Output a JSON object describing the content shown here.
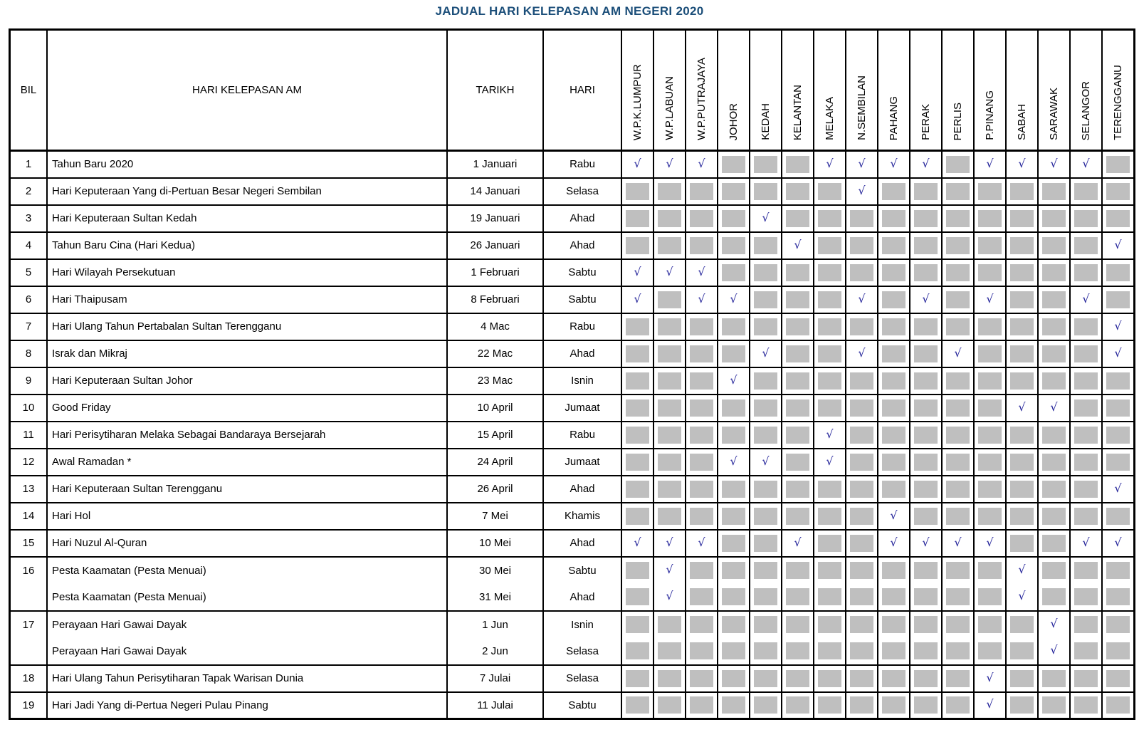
{
  "title": "JADUAL HARI KELEPASAN AM NEGERI 2020",
  "title_color": "#1B4E79",
  "check_color": "#26269B",
  "box_color": "#BFBFBF",
  "glyphs": {
    "check": "√"
  },
  "headers": [
    "BIL",
    "HARI KELEPASAN AM",
    "TARIKH",
    "HARI"
  ],
  "states": [
    "W.P.K.LUMPUR",
    "W.P.LABUAN",
    "W.P.PUTRAJAYA",
    "JOHOR",
    "KEDAH",
    "KELANTAN",
    "MELAKA",
    "N.SEMBILAN",
    "PAHANG",
    "PERAK",
    "PERLIS",
    "P.PINANG",
    "SABAH",
    "SARAWAK",
    "SELANGOR",
    "TERENGGANU"
  ],
  "rows": [
    {
      "bil": "1",
      "entries": [
        {
          "name": "Tahun Baru 2020",
          "date": "1 Januari",
          "day": "Rabu",
          "marks": [
            1,
            1,
            1,
            0,
            0,
            0,
            1,
            1,
            1,
            1,
            0,
            1,
            1,
            1,
            1,
            0
          ]
        }
      ]
    },
    {
      "bil": "2",
      "entries": [
        {
          "name": "Hari Keputeraan Yang di-Pertuan Besar Negeri Sembilan",
          "date": "14 Januari",
          "day": "Selasa",
          "marks": [
            0,
            0,
            0,
            0,
            0,
            0,
            0,
            1,
            0,
            0,
            0,
            0,
            0,
            0,
            0,
            0
          ]
        }
      ]
    },
    {
      "bil": "3",
      "entries": [
        {
          "name": "Hari Keputeraan Sultan Kedah",
          "date": "19 Januari",
          "day": "Ahad",
          "marks": [
            0,
            0,
            0,
            0,
            1,
            0,
            0,
            0,
            0,
            0,
            0,
            0,
            0,
            0,
            0,
            0
          ]
        }
      ]
    },
    {
      "bil": "4",
      "entries": [
        {
          "name": "Tahun Baru Cina (Hari Kedua)",
          "date": "26 Januari",
          "day": "Ahad",
          "marks": [
            0,
            0,
            0,
            0,
            0,
            1,
            0,
            0,
            0,
            0,
            0,
            0,
            0,
            0,
            0,
            1
          ]
        }
      ]
    },
    {
      "bil": "5",
      "entries": [
        {
          "name": "Hari Wilayah Persekutuan",
          "date": "1 Februari",
          "day": "Sabtu",
          "marks": [
            1,
            1,
            1,
            0,
            0,
            0,
            0,
            0,
            0,
            0,
            0,
            0,
            0,
            0,
            0,
            0
          ]
        }
      ]
    },
    {
      "bil": "6",
      "entries": [
        {
          "name": "Hari Thaipusam",
          "date": "8 Februari",
          "day": "Sabtu",
          "marks": [
            1,
            0,
            1,
            1,
            0,
            0,
            0,
            1,
            0,
            1,
            0,
            1,
            0,
            0,
            1,
            0
          ]
        }
      ]
    },
    {
      "bil": "7",
      "entries": [
        {
          "name": "Hari Ulang Tahun Pertabalan Sultan Terengganu",
          "date": "4 Mac",
          "day": "Rabu",
          "marks": [
            0,
            0,
            0,
            0,
            0,
            0,
            0,
            0,
            0,
            0,
            0,
            0,
            0,
            0,
            0,
            1
          ]
        }
      ]
    },
    {
      "bil": "8",
      "entries": [
        {
          "name": "Israk dan Mikraj",
          "date": "22 Mac",
          "day": "Ahad",
          "marks": [
            0,
            0,
            0,
            0,
            1,
            0,
            0,
            1,
            0,
            0,
            1,
            0,
            0,
            0,
            0,
            1
          ]
        }
      ]
    },
    {
      "bil": "9",
      "entries": [
        {
          "name": "Hari Keputeraan Sultan Johor",
          "date": "23 Mac",
          "day": "Isnin",
          "marks": [
            0,
            0,
            0,
            1,
            0,
            0,
            0,
            0,
            0,
            0,
            0,
            0,
            0,
            0,
            0,
            0
          ]
        }
      ]
    },
    {
      "bil": "10",
      "entries": [
        {
          "name": "Good Friday",
          "date": "10 April",
          "day": "Jumaat",
          "marks": [
            0,
            0,
            0,
            0,
            0,
            0,
            0,
            0,
            0,
            0,
            0,
            0,
            1,
            1,
            0,
            0
          ]
        }
      ]
    },
    {
      "bil": "11",
      "entries": [
        {
          "name": "Hari Perisytiharan Melaka Sebagai Bandaraya Bersejarah",
          "date": "15 April",
          "day": "Rabu",
          "marks": [
            0,
            0,
            0,
            0,
            0,
            0,
            1,
            0,
            0,
            0,
            0,
            0,
            0,
            0,
            0,
            0
          ]
        }
      ]
    },
    {
      "bil": "12",
      "entries": [
        {
          "name": "Awal Ramadan *",
          "date": "24 April",
          "day": "Jumaat",
          "marks": [
            0,
            0,
            0,
            1,
            1,
            0,
            1,
            0,
            0,
            0,
            0,
            0,
            0,
            0,
            0,
            0
          ]
        }
      ]
    },
    {
      "bil": "13",
      "entries": [
        {
          "name": "Hari Keputeraan Sultan Terengganu",
          "date": "26 April",
          "day": "Ahad",
          "marks": [
            0,
            0,
            0,
            0,
            0,
            0,
            0,
            0,
            0,
            0,
            0,
            0,
            0,
            0,
            0,
            1
          ]
        }
      ]
    },
    {
      "bil": "14",
      "entries": [
        {
          "name": "Hari Hol",
          "date": "7 Mei",
          "day": "Khamis",
          "marks": [
            0,
            0,
            0,
            0,
            0,
            0,
            0,
            0,
            1,
            0,
            0,
            0,
            0,
            0,
            0,
            0
          ]
        }
      ]
    },
    {
      "bil": "15",
      "entries": [
        {
          "name": "Hari Nuzul Al-Quran",
          "date": "10 Mei",
          "day": "Ahad",
          "marks": [
            1,
            1,
            1,
            0,
            0,
            1,
            0,
            0,
            1,
            1,
            1,
            1,
            0,
            0,
            1,
            1
          ]
        }
      ]
    },
    {
      "bil": "16",
      "entries": [
        {
          "name": "Pesta Kaamatan (Pesta Menuai)",
          "date": "30 Mei",
          "day": "Sabtu",
          "marks": [
            0,
            1,
            0,
            0,
            0,
            0,
            0,
            0,
            0,
            0,
            0,
            0,
            1,
            0,
            0,
            0
          ]
        },
        {
          "name": "Pesta Kaamatan (Pesta Menuai)",
          "date": "31 Mei",
          "day": "Ahad",
          "marks": [
            0,
            1,
            0,
            0,
            0,
            0,
            0,
            0,
            0,
            0,
            0,
            0,
            1,
            0,
            0,
            0
          ]
        }
      ]
    },
    {
      "bil": "17",
      "entries": [
        {
          "name": "Perayaan Hari Gawai Dayak",
          "date": "1 Jun",
          "day": "Isnin",
          "marks": [
            0,
            0,
            0,
            0,
            0,
            0,
            0,
            0,
            0,
            0,
            0,
            0,
            0,
            1,
            0,
            0
          ]
        },
        {
          "name": "Perayaan Hari Gawai Dayak",
          "date": "2 Jun",
          "day": "Selasa",
          "marks": [
            0,
            0,
            0,
            0,
            0,
            0,
            0,
            0,
            0,
            0,
            0,
            0,
            0,
            1,
            0,
            0
          ]
        }
      ]
    },
    {
      "bil": "18",
      "entries": [
        {
          "name": "Hari Ulang Tahun Perisytiharan Tapak Warisan Dunia",
          "date": "7 Julai",
          "day": "Selasa",
          "marks": [
            0,
            0,
            0,
            0,
            0,
            0,
            0,
            0,
            0,
            0,
            0,
            1,
            0,
            0,
            0,
            0
          ]
        }
      ]
    },
    {
      "bil": "19",
      "entries": [
        {
          "name": "Hari Jadi Yang di-Pertua Negeri Pulau Pinang",
          "date": "11 Julai",
          "day": "Sabtu",
          "marks": [
            0,
            0,
            0,
            0,
            0,
            0,
            0,
            0,
            0,
            0,
            0,
            1,
            0,
            0,
            0,
            0
          ]
        }
      ]
    }
  ]
}
